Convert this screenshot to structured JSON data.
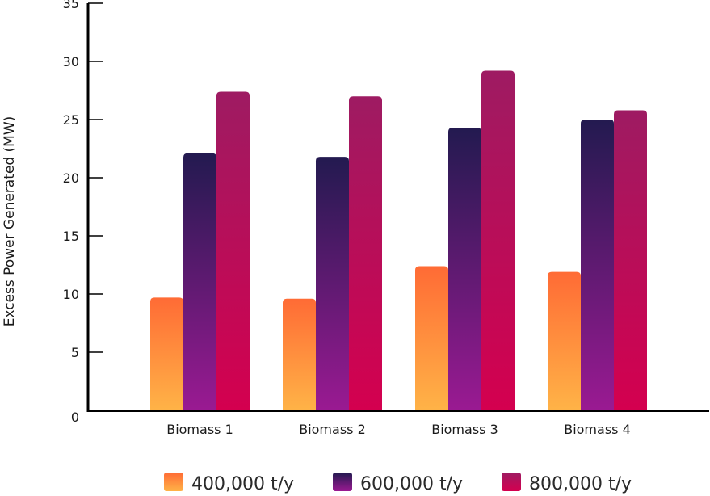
{
  "chart_data": {
    "type": "bar",
    "title": "",
    "xlabel": "",
    "ylabel": "Excess Power Generated (MW)",
    "ylim": [
      0,
      35
    ],
    "yticks": [
      0,
      5,
      10,
      15,
      20,
      25,
      30,
      35
    ],
    "grid": false,
    "legend_position": "bottom",
    "categories": [
      "Biomass 1",
      "Biomass 2",
      "Biomass 3",
      "Biomass 4"
    ],
    "series": [
      {
        "name": "400,000 t/y",
        "values": [
          9.7,
          9.6,
          12.4,
          11.9
        ],
        "color_top": "#FF6B35",
        "color_bottom": "#FFB347"
      },
      {
        "name": "600,000 t/y",
        "values": [
          22.1,
          21.8,
          24.3,
          25.0
        ],
        "color_top": "#231A50",
        "color_bottom": "#9A1A92"
      },
      {
        "name": "800,000 t/y",
        "values": [
          27.4,
          27.0,
          29.2,
          25.8
        ],
        "color_top": "#9E1B62",
        "color_bottom": "#D4004F"
      }
    ]
  }
}
